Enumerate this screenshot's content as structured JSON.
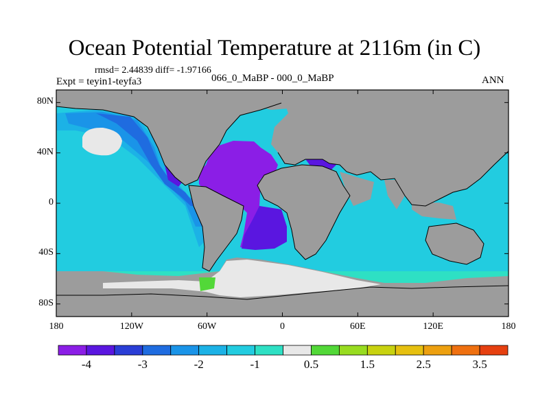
{
  "title": "Ocean Potential Temperature at 2116m (in C)",
  "stats": "rmsd= 2.44839 diff= -1.97166",
  "experiment": "Expt = teyin1-teyfa3",
  "period": "066_0_MaBP - 000_0_MaBP",
  "season": "ANN",
  "colors": {
    "land": "#9c9c9c",
    "near_zero": "#e8e8e8",
    "coast": "#000000"
  },
  "map": {
    "projection": "cylindrical-equidistant",
    "lon_range": [
      -180,
      180
    ],
    "lat_range": [
      -90,
      90
    ],
    "lat_ticks": [
      {
        "value": 80,
        "label": "80N"
      },
      {
        "value": 40,
        "label": "40N"
      },
      {
        "value": 0,
        "label": "0"
      },
      {
        "value": -40,
        "label": "40S"
      },
      {
        "value": -80,
        "label": "80S"
      }
    ],
    "lon_ticks": [
      {
        "value": -180,
        "label": "180"
      },
      {
        "value": -120,
        "label": "120W"
      },
      {
        "value": -60,
        "label": "60W"
      },
      {
        "value": 0,
        "label": "0"
      },
      {
        "value": 60,
        "label": "60E"
      },
      {
        "value": 120,
        "label": "120E"
      },
      {
        "value": 180,
        "label": "180"
      }
    ]
  },
  "colorbar": {
    "colors": [
      "#8b1ee6",
      "#5a16e0",
      "#2a3ed6",
      "#1f6ce0",
      "#1a94e8",
      "#1cb2e6",
      "#22cce0",
      "#2ee0c4",
      "#e8e8e8",
      "#52d838",
      "#98dc20",
      "#c8d210",
      "#e6c010",
      "#eda010",
      "#ef7010",
      "#e64010"
    ],
    "labels": [
      {
        "after_index": 0,
        "text": "-4"
      },
      {
        "after_index": 2,
        "text": "-3"
      },
      {
        "after_index": 4,
        "text": "-2"
      },
      {
        "after_index": 6,
        "text": "-1"
      },
      {
        "after_index": 8,
        "text": "0.5"
      },
      {
        "after_index": 10,
        "text": "1.5"
      },
      {
        "after_index": 12,
        "text": "2.5"
      },
      {
        "after_index": 14,
        "text": "3.5"
      }
    ]
  }
}
